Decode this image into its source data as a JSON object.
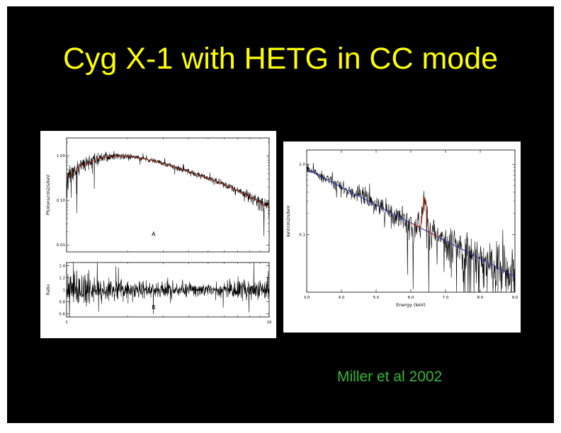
{
  "slide": {
    "title": "Cyg X-1 with HETG in CC mode",
    "citation": "Miller et al 2002"
  },
  "colors": {
    "background": "#000000",
    "frame": "#ffffff",
    "title": "#ffff00",
    "citation": "#33bb33",
    "data_black": "#000000",
    "model_red": "#cc2200",
    "powerlaw_blue": "#2233bb"
  },
  "chart_data": [
    {
      "id": "left-spectrum",
      "type": "line",
      "x_label": "",
      "x_scale": "log",
      "x_range": [
        1,
        10
      ],
      "x_ticks": [
        {
          "v": 1,
          "label": "1"
        },
        {
          "v": 10,
          "label": "10"
        }
      ],
      "panels": [
        {
          "label": "A",
          "y_label": "Photons/cm2/s/keV",
          "y_scale": "log",
          "y_range": [
            0.007,
            2.5
          ],
          "y_ticks": [
            {
              "v": 1.0,
              "label": "1.00"
            },
            {
              "v": 0.1,
              "label": "0.10"
            },
            {
              "v": 0.01,
              "label": "0.01"
            }
          ],
          "series": [
            {
              "name": "data",
              "color": "#000000",
              "width": 0.6,
              "points": 900,
              "seed": 11,
              "trend": [
                [
                  1,
                  0.32
                ],
                [
                  1.2,
                  0.62
                ],
                [
                  1.5,
                  0.9
                ],
                [
                  1.8,
                  1.0
                ],
                [
                  2.2,
                  0.92
                ],
                [
                  2.8,
                  0.74
                ],
                [
                  3.5,
                  0.54
                ],
                [
                  4.5,
                  0.37
                ],
                [
                  5.5,
                  0.27
                ],
                [
                  7,
                  0.165
                ],
                [
                  8.5,
                  0.105
                ],
                [
                  10,
                  0.068
                ]
              ],
              "noise": [
                [
                  1,
                  0.3
                ],
                [
                  1.3,
                  0.16
                ],
                [
                  1.8,
                  0.08
                ],
                [
                  3,
                  0.06
                ],
                [
                  5,
                  0.08
                ],
                [
                  7,
                  0.12
                ],
                [
                  8.5,
                  0.17
                ],
                [
                  10,
                  0.25
                ]
              ]
            },
            {
              "name": "model",
              "color": "#cc2200",
              "width": 0.8,
              "points": 300,
              "seed": 1,
              "trend": [
                [
                  1,
                  0.32
                ],
                [
                  1.2,
                  0.62
                ],
                [
                  1.5,
                  0.9
                ],
                [
                  1.8,
                  1.0
                ],
                [
                  2.2,
                  0.92
                ],
                [
                  2.8,
                  0.74
                ],
                [
                  3.5,
                  0.54
                ],
                [
                  4.5,
                  0.37
                ],
                [
                  5.5,
                  0.27
                ],
                [
                  7,
                  0.165
                ],
                [
                  8.5,
                  0.105
                ],
                [
                  10,
                  0.068
                ]
              ]
            }
          ]
        },
        {
          "label": "B",
          "y_label": "Ratio",
          "y_scale": "linear",
          "y_range": [
            0.55,
            1.45
          ],
          "y_ticks": [
            {
              "v": 1.4,
              "label": "1.4"
            },
            {
              "v": 1.2,
              "label": "1.2"
            },
            {
              "v": 1.0,
              "label": "1"
            },
            {
              "v": 0.8,
              "label": "0.8"
            },
            {
              "v": 0.6,
              "label": "0.6"
            }
          ],
          "series": [
            {
              "name": "ratio",
              "color": "#000000",
              "width": 0.6,
              "points": 900,
              "seed": 7,
              "trend": [
                [
                  1,
                  1.0
                ],
                [
                  10,
                  1.0
                ]
              ],
              "noise": [
                [
                  1,
                  0.17
                ],
                [
                  1.5,
                  0.1
                ],
                [
                  2.5,
                  0.06
                ],
                [
                  5,
                  0.05
                ],
                [
                  7,
                  0.07
                ],
                [
                  10,
                  0.11
                ]
              ]
            }
          ]
        }
      ]
    },
    {
      "id": "right-fe-line",
      "type": "line",
      "x_label": "Energy (keV)",
      "x_scale": "linear",
      "x_range": [
        3,
        9
      ],
      "x_ticks": [
        {
          "v": 3,
          "label": "3.0"
        },
        {
          "v": 4,
          "label": "4.0"
        },
        {
          "v": 5,
          "label": "5.0"
        },
        {
          "v": 6,
          "label": "6.0"
        },
        {
          "v": 7,
          "label": "7.0"
        },
        {
          "v": 8,
          "label": "8.0"
        },
        {
          "v": 9,
          "label": "9.0"
        }
      ],
      "panels": [
        {
          "label": "",
          "y_label": "keV/cm2/s/keV",
          "y_scale": "log",
          "y_range": [
            0.015,
            1.6
          ],
          "y_ticks": [
            {
              "v": 1.0,
              "label": "1.0"
            },
            {
              "v": 0.1,
              "label": "0.1"
            }
          ],
          "series": [
            {
              "name": "data",
              "color": "#000000",
              "width": 0.6,
              "points": 600,
              "seed": 23,
              "trend": [
                [
                  3,
                  0.85
                ],
                [
                  4,
                  0.47
                ],
                [
                  5,
                  0.26
                ],
                [
                  6,
                  0.146
                ],
                [
                  7,
                  0.081
                ],
                [
                  8,
                  0.045
                ],
                [
                  9,
                  0.025
                ]
              ],
              "noise": [
                [
                  3,
                  0.1
                ],
                [
                  4,
                  0.13
                ],
                [
                  5,
                  0.17
                ],
                [
                  6,
                  0.22
                ],
                [
                  7,
                  0.3
                ],
                [
                  8,
                  0.4
                ],
                [
                  9,
                  0.55
                ]
              ],
              "emission_line": {
                "center": 6.4,
                "sigma": 0.045,
                "amplitude": 1.9
              }
            },
            {
              "name": "powerlaw-fit",
              "color": "#2233bb",
              "width": 1,
              "points": 2,
              "seed": 1,
              "trend": [
                [
                  3,
                  0.85
                ],
                [
                  9,
                  0.025
                ]
              ]
            },
            {
              "name": "gaussian-fit",
              "color": "#cc2200",
              "width": 1,
              "points": 160,
              "seed": 1,
              "trend": [
                [
                  6.0,
                  0.146
                ],
                [
                  6.8,
                  0.091
                ]
              ],
              "emission_line": {
                "center": 6.4,
                "sigma": 0.045,
                "amplitude": 1.9
              }
            }
          ]
        }
      ]
    }
  ]
}
